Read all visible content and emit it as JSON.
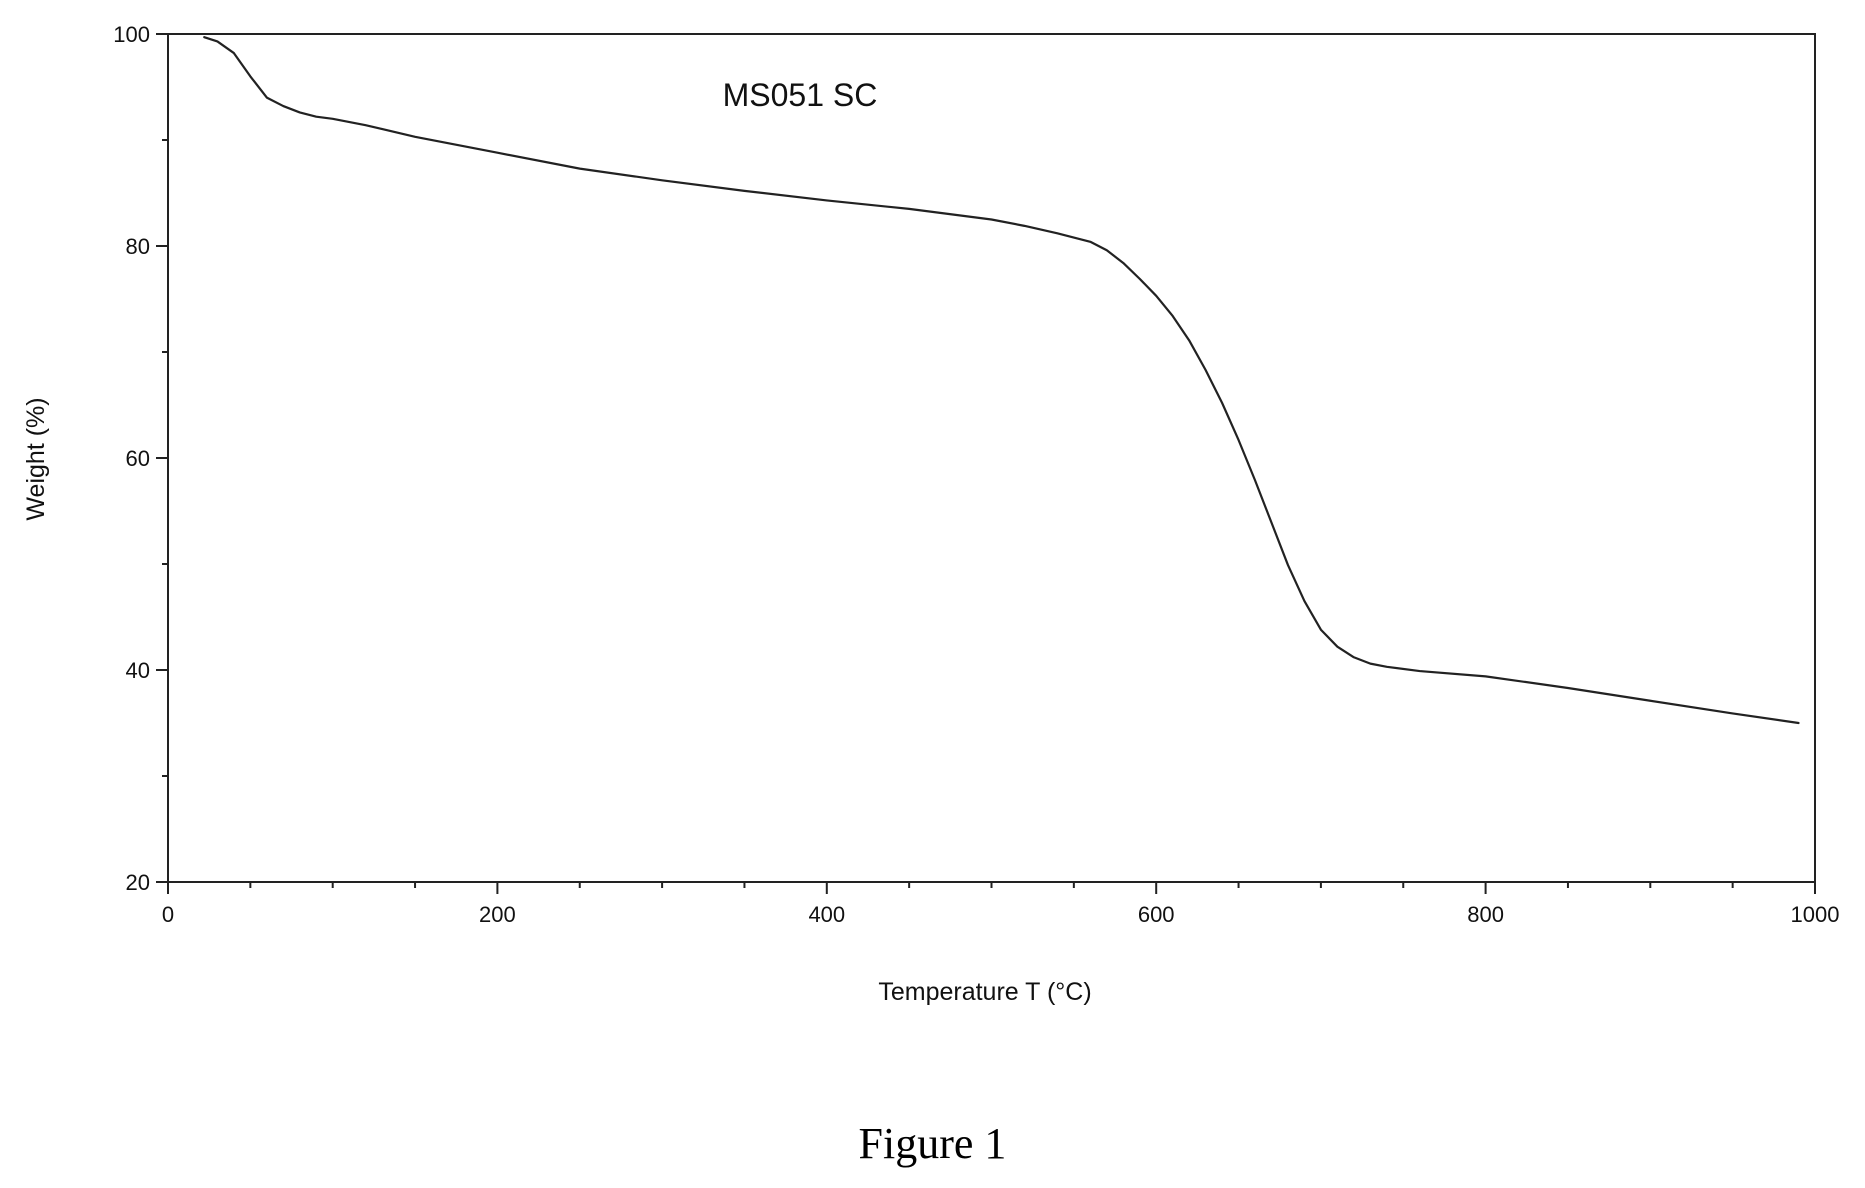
{
  "caption": "Figure 1",
  "chart_data": {
    "type": "line",
    "title": "",
    "annotation": "MS051 SC",
    "xlabel": "Temperature T (°C)",
    "ylabel": "Weight (%)",
    "xlim": [
      0,
      1000
    ],
    "ylim": [
      20,
      100
    ],
    "xticks": [
      0,
      200,
      400,
      600,
      800,
      1000
    ],
    "yticks": [
      20,
      40,
      60,
      80,
      100
    ],
    "x_minor_step": 50,
    "y_minor_step": 10,
    "grid": false,
    "legend": "none",
    "line_color": "#222222",
    "series": [
      {
        "x": [
          22,
          30,
          40,
          50,
          60,
          70,
          80,
          90,
          100,
          120,
          150,
          200,
          250,
          300,
          350,
          400,
          450,
          500,
          520,
          540,
          560,
          570,
          580,
          590,
          600,
          610,
          620,
          630,
          640,
          650,
          660,
          670,
          680,
          690,
          700,
          710,
          720,
          730,
          740,
          760,
          800,
          850,
          900,
          950,
          990
        ],
        "y": [
          99.7,
          99.3,
          98.2,
          96.0,
          94.0,
          93.2,
          92.6,
          92.2,
          92.0,
          91.4,
          90.3,
          88.8,
          87.3,
          86.2,
          85.2,
          84.3,
          83.5,
          82.5,
          81.9,
          81.2,
          80.4,
          79.6,
          78.4,
          76.9,
          75.3,
          73.4,
          71.1,
          68.3,
          65.2,
          61.7,
          57.9,
          53.9,
          49.9,
          46.5,
          43.8,
          42.2,
          41.2,
          40.6,
          40.3,
          39.9,
          39.4,
          38.3,
          37.1,
          35.9,
          35.0
        ]
      }
    ]
  }
}
